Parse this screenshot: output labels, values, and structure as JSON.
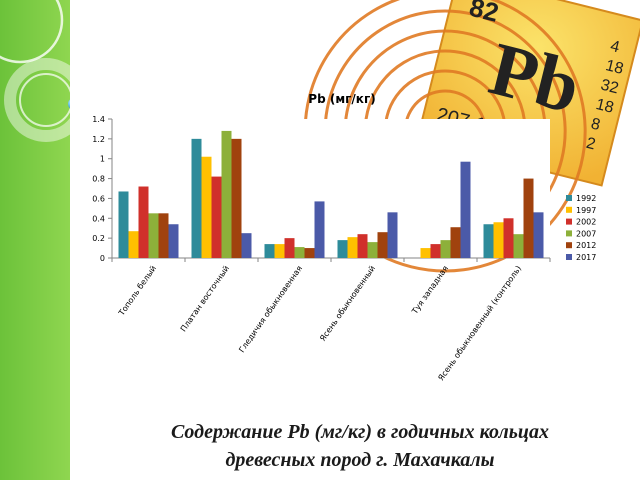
{
  "caption": {
    "line1": "Содержание Pb (мг/кг) в годичных кольцах",
    "line2": "древесных пород г. Махачкалы"
  },
  "element_tile": {
    "atomic_number": "82",
    "symbol": "Pb",
    "atomic_mass": "207,19",
    "shells": [
      "4",
      "18",
      "32",
      "18",
      "8",
      "2"
    ]
  },
  "colors": {
    "sidebar_green": "#7ac943",
    "tile_yellow": "#f7d84a",
    "tile_orange": "#e8862a"
  },
  "chart_data": {
    "type": "bar",
    "title": "Pb (мг/кг)",
    "xlabel": "",
    "ylabel": "",
    "ylim": [
      0,
      1.4
    ],
    "yticks": [
      "0",
      "0.2",
      "0.4",
      "0.6",
      "0.8",
      "1",
      "1.2",
      "1.4"
    ],
    "grid": false,
    "legend_position": "right",
    "categories": [
      "Тополь белый",
      "Платан восточный",
      "Гледичия обыкновенная",
      "Ясень обыкновенный",
      "Туя западная",
      "Ясень обыкновенный (контроль)"
    ],
    "series": [
      {
        "name": "1992",
        "color": "#2e8b9a",
        "values": [
          0.67,
          1.2,
          0.14,
          0.18,
          0.0,
          0.34
        ]
      },
      {
        "name": "1997",
        "color": "#ffc000",
        "values": [
          0.27,
          1.02,
          0.14,
          0.21,
          0.1,
          0.36
        ]
      },
      {
        "name": "2002",
        "color": "#d0302b",
        "values": [
          0.72,
          0.82,
          0.2,
          0.24,
          0.14,
          0.4
        ]
      },
      {
        "name": "2007",
        "color": "#8db03a",
        "values": [
          0.45,
          1.28,
          0.11,
          0.16,
          0.18,
          0.24
        ]
      },
      {
        "name": "2012",
        "color": "#a0420e",
        "values": [
          0.45,
          1.2,
          0.1,
          0.26,
          0.31,
          0.8
        ]
      },
      {
        "name": "2017",
        "color": "#4b5aa8",
        "values": [
          0.34,
          0.25,
          0.57,
          0.46,
          0.97,
          0.46
        ]
      }
    ]
  }
}
